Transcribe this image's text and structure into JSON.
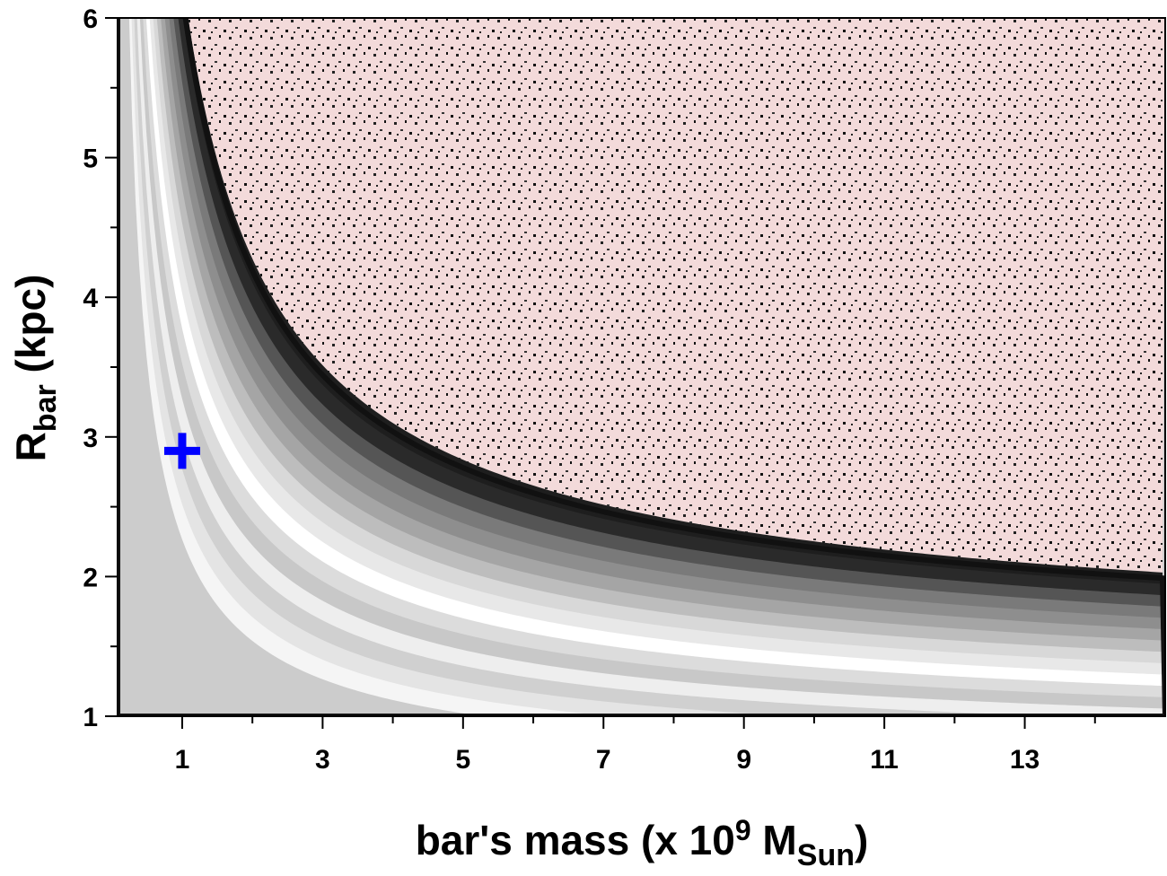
{
  "chart_data": {
    "type": "scatter",
    "xlabel": {
      "main": "bar's mass (x 10",
      "sup": "9",
      "mid": " M",
      "sub": "Sun",
      "end": ")"
    },
    "ylabel": {
      "main": "R",
      "sub": "bar",
      "end": " (kpc)"
    },
    "xlim": [
      0.08,
      15
    ],
    "ylim": [
      1,
      6
    ],
    "xticks": [
      1,
      3,
      5,
      7,
      9,
      11,
      13
    ],
    "yticks": [
      1,
      2,
      3,
      4,
      5,
      6
    ],
    "xminorticks": [
      2,
      4,
      6,
      8,
      10,
      12,
      14
    ],
    "yminorticks": [
      1.5,
      2.5,
      3.5,
      4.5,
      5.5
    ],
    "series": [
      {
        "color": "#0000ff",
        "marker": "+",
        "x": [
          1
        ],
        "values": [
          2.9
        ]
      }
    ]
  }
}
